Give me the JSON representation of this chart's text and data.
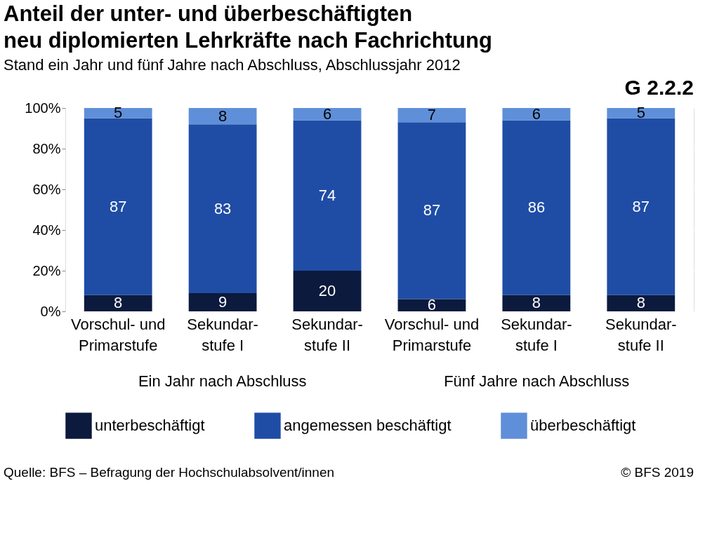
{
  "chart_data": {
    "type": "bar",
    "title": [
      "Anteil der unter- und überbeschäftigten",
      "neu diplomierten Lehrkräfte nach Fachrichtung"
    ],
    "subtitle": "Stand ein Jahr und fünf Jahre nach Abschluss, Abschlussjahr 2012",
    "categories": [
      "Vorschul- und\nPrimarstufe",
      "Sekundar-\nstufe I",
      "Sekundar-\nstufe II",
      "Vorschul- und\nPrimarstufe",
      "Sekundar-\nstufe I",
      "Sekundar-\nstufe II"
    ],
    "stacked": true,
    "series": [
      {
        "name": "unterbeschäftigt",
        "color": "#0b1a3d",
        "values": [
          8,
          9,
          20,
          6,
          8,
          8
        ]
      },
      {
        "name": "angemessen beschäftigt",
        "color": "#1f4da6",
        "values": [
          87,
          83,
          74,
          87,
          86,
          87
        ]
      },
      {
        "name": "überbeschäftigt",
        "color": "#5f8fd8",
        "values": [
          5,
          8,
          6,
          7,
          6,
          5
        ]
      }
    ],
    "ylim": [
      0,
      100
    ],
    "yticks": [
      {
        "value": 0,
        "label": "0%"
      },
      {
        "value": 20,
        "label": "20%"
      },
      {
        "value": 40,
        "label": "40%"
      },
      {
        "value": 60,
        "label": "60%"
      },
      {
        "value": 80,
        "label": "80%"
      },
      {
        "value": 100,
        "label": "100%"
      }
    ],
    "grid": "y",
    "legend": "bottom",
    "data_labels": true,
    "annotations": [
      "G 2.2.2",
      "Ein Jahr nach Abschluss",
      "Fünf Jahre nach Abschluss",
      "Quelle: BFS – Befragung der Hochschulabsolvent/innen",
      "© BFS 2019"
    ]
  }
}
